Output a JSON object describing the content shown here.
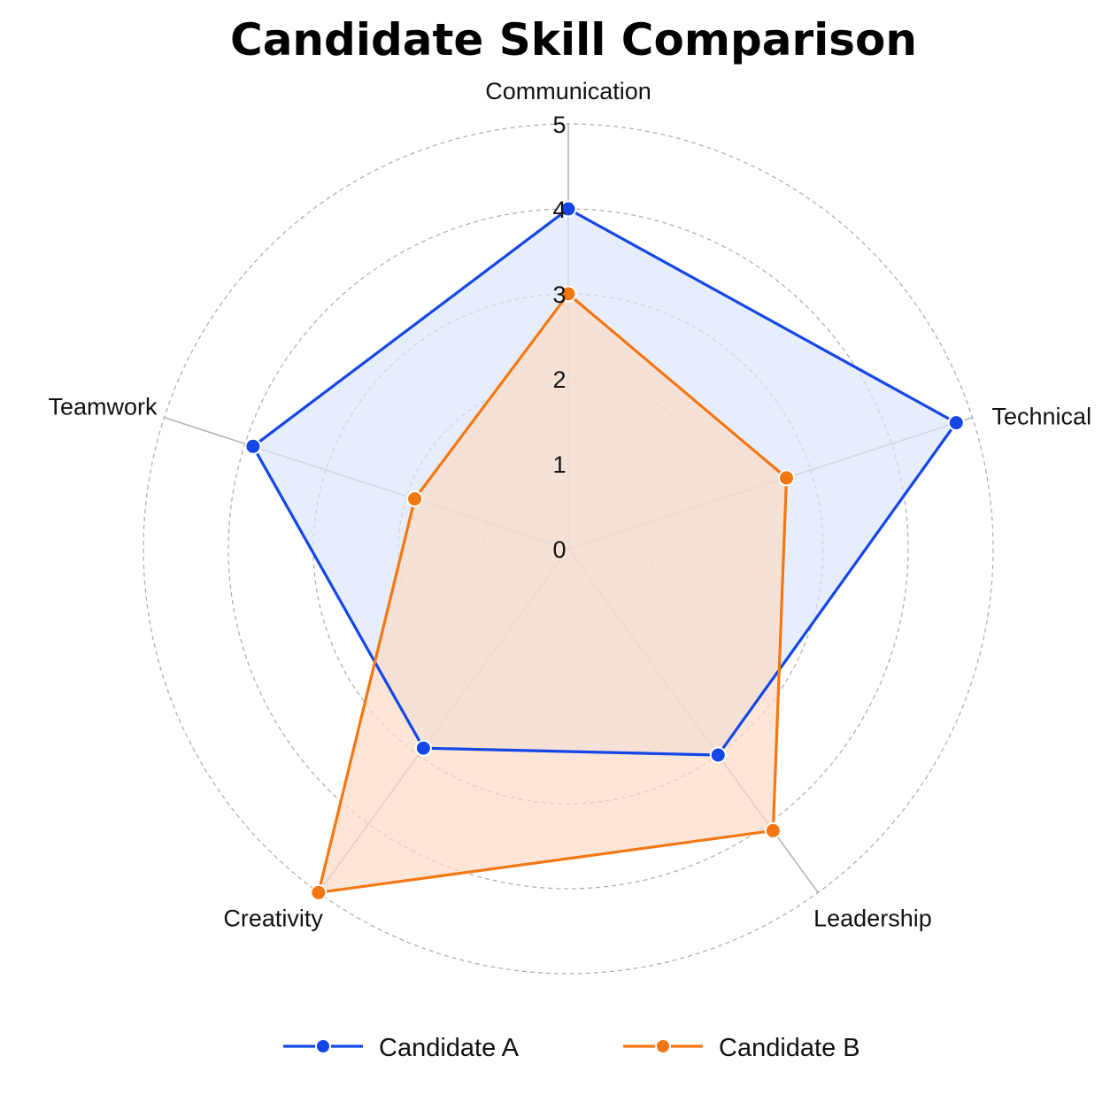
{
  "chart_data": {
    "type": "radar",
    "title": "Candidate Skill Comparison",
    "categories": [
      "Communication",
      "Technical",
      "Leadership",
      "Creativity",
      "Teamwork"
    ],
    "rlim": [
      0,
      5
    ],
    "ticks": [
      "0",
      "1",
      "2",
      "3",
      "4",
      "5"
    ],
    "grid": true,
    "legend_position": "bottom",
    "series": [
      {
        "name": "Candidate A",
        "values": [
          4,
          4.8,
          3,
          2.9,
          3.9
        ],
        "color": "#1447e6",
        "fill": "#dce6fa"
      },
      {
        "name": "Candidate B",
        "values": [
          3,
          2.7,
          4.1,
          5,
          1.9
        ],
        "color": "#f57712",
        "fill": "#fcdcc6"
      }
    ]
  }
}
